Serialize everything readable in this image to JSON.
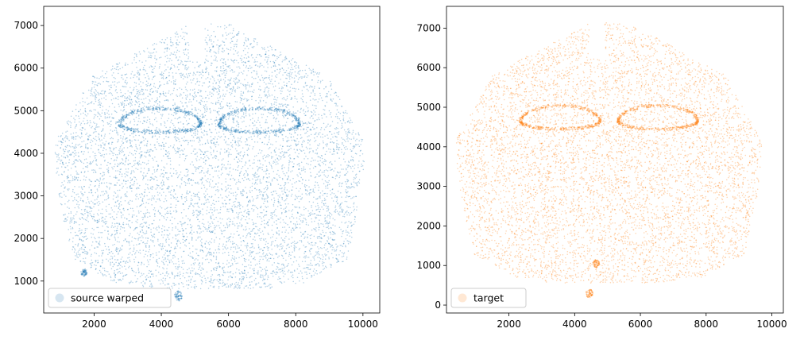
{
  "chart_data": [
    {
      "type": "scatter",
      "title": "",
      "xlabel": "",
      "ylabel": "",
      "xlim": [
        500,
        10500
      ],
      "ylim": [
        250,
        7450
      ],
      "xticks": [
        2000,
        4000,
        6000,
        8000,
        10000
      ],
      "yticks": [
        1000,
        2000,
        3000,
        4000,
        5000,
        6000,
        7000
      ],
      "grid": false,
      "legend_position": "lower-left",
      "series": [
        {
          "name": "source warped",
          "color": "#1f77b4",
          "alpha": 0.15,
          "marker": "point"
        }
      ]
    },
    {
      "type": "scatter",
      "title": "",
      "xlabel": "",
      "ylabel": "",
      "xlim": [
        100,
        10350
      ],
      "ylim": [
        -200,
        7550
      ],
      "xticks": [
        2000,
        4000,
        6000,
        8000,
        10000
      ],
      "yticks": [
        0,
        1000,
        2000,
        3000,
        4000,
        5000,
        6000,
        7000
      ],
      "grid": false,
      "legend_position": "lower-left",
      "series": [
        {
          "name": "target",
          "color": "#ff7f0e",
          "alpha": 0.15,
          "marker": "point"
        }
      ]
    }
  ]
}
